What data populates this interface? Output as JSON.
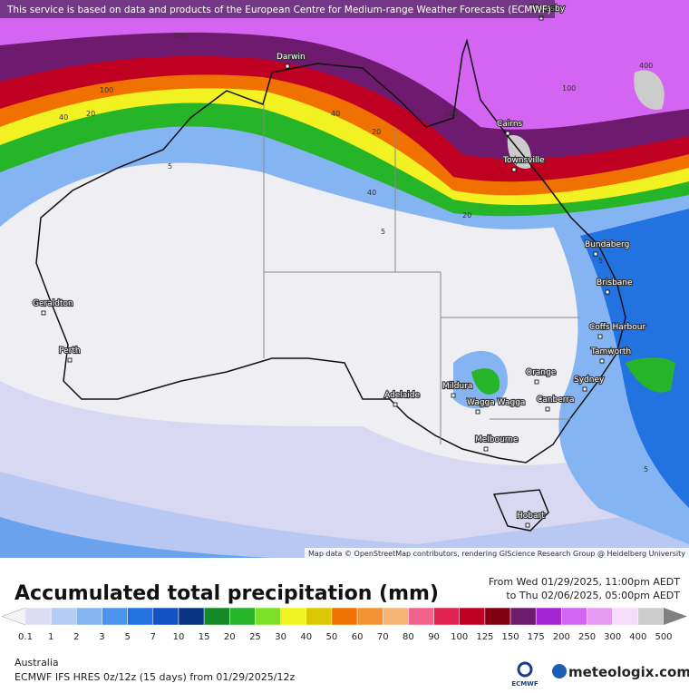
{
  "banner": "This service is based on data and products of the European Centre for Medium-range Weather Forecasts (ECMWF)",
  "map": {
    "places": [
      "Moresby",
      "Darwin",
      "Cairns",
      "Townsville",
      "Bundaberg",
      "Brisbane",
      "Geraldton",
      "Perth",
      "Coffs Harbour",
      "Tamworth",
      "Orange",
      "Sydney",
      "Mildura",
      "Wagga Wagga",
      "Canberra",
      "Adelaide",
      "Melbourne",
      "Hobart"
    ],
    "contour_labels": [
      "200",
      "100",
      "40",
      "20",
      "400",
      "200",
      "100",
      "40",
      "20",
      "5",
      "40",
      "20",
      "5",
      "5",
      "5"
    ],
    "attribution": "Map data © OpenStreetMap contributors, rendering GIScience Research Group @ Heidelberg University"
  },
  "footer": {
    "title": "Accumulated total precipitation (mm)",
    "period_from": "From Wed 01/29/2025, 11:00pm AEDT",
    "period_to": "to Thu 02/06/2025, 05:00pm AEDT",
    "scale": {
      "labels": [
        "0.1",
        "1",
        "2",
        "3",
        "5",
        "7",
        "10",
        "15",
        "20",
        "25",
        "30",
        "40",
        "50",
        "60",
        "70",
        "80",
        "90",
        "100",
        "125",
        "150",
        "175",
        "200",
        "250",
        "300",
        "400",
        "500"
      ],
      "colors": [
        "#f4f4f8",
        "#dcdcf4",
        "#b4cdf6",
        "#84b4f2",
        "#4a96ee",
        "#2272e2",
        "#1252c2",
        "#0a3282",
        "#138a26",
        "#26b428",
        "#7ce02a",
        "#f2f222",
        "#dcc800",
        "#f07000",
        "#f49232",
        "#f8b472",
        "#f2628a",
        "#e02250",
        "#c00022",
        "#820012",
        "#6e1a6e",
        "#a424d4",
        "#d464f2",
        "#e69af2",
        "#f4dcfa",
        "#cccccc",
        "#808080"
      ]
    },
    "region": "Australia",
    "model": "ECMWF IFS HRES 0z/12z (15 days) from  01/29/2025/12z",
    "logo_small": "ECMWF",
    "logo": "meteologix.com"
  }
}
